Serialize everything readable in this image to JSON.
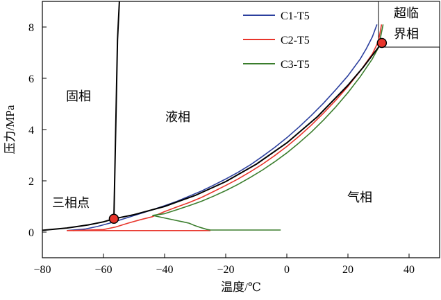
{
  "chart_data": {
    "type": "line",
    "title": "",
    "xlabel": "温度/℃",
    "ylabel": "压力/MPa",
    "xlim": [
      -80,
      50
    ],
    "ylim": [
      -1,
      9
    ],
    "xticks": [
      -80,
      -60,
      -40,
      -20,
      0,
      20,
      40
    ],
    "yticks": [
      0,
      2,
      4,
      6,
      8
    ],
    "grid": false,
    "legend_position": "top-right",
    "colors": {
      "C1-T5": "#2b3f9e",
      "C2-T5": "#e8352b",
      "C3-T5": "#3a7d2c",
      "phase": "#000000",
      "marker": "#e8352b"
    },
    "series": [
      {
        "name": "C1-T5",
        "x": [
          -72,
          -70,
          -66,
          -62,
          -58,
          -56,
          -52,
          -48,
          -44,
          -40,
          -36,
          -32,
          -28,
          -24,
          -20,
          -16,
          -12,
          -8,
          -4,
          0,
          4,
          8,
          12,
          16,
          20,
          24,
          26,
          28,
          29.5
        ],
        "y": [
          0.06,
          0.08,
          0.12,
          0.22,
          0.35,
          0.42,
          0.57,
          0.72,
          0.87,
          1.03,
          1.2,
          1.4,
          1.6,
          1.83,
          2.07,
          2.33,
          2.62,
          2.95,
          3.3,
          3.68,
          4.1,
          4.55,
          5.03,
          5.55,
          6.1,
          6.75,
          7.15,
          7.62,
          8.1
        ]
      },
      {
        "name": "C2-T5",
        "x": [
          -70,
          -60,
          -56,
          -52,
          -48,
          -44,
          -40,
          -36,
          -32,
          -28,
          -24,
          -20,
          -16,
          -12,
          -8,
          -4,
          0,
          4,
          8,
          12,
          16,
          20,
          24,
          28,
          30,
          31
        ],
        "y": [
          0.06,
          0.1,
          0.2,
          0.35,
          0.48,
          0.6,
          0.8,
          0.98,
          1.15,
          1.35,
          1.58,
          1.82,
          2.07,
          2.35,
          2.65,
          2.98,
          3.34,
          3.74,
          4.17,
          4.64,
          5.14,
          5.68,
          6.28,
          6.95,
          7.45,
          8.1
        ]
      },
      {
        "name": "C2-T5 lower",
        "x": [
          -72,
          -60,
          -40,
          -25
        ],
        "y": [
          0.06,
          0.06,
          0.06,
          0.06
        ]
      },
      {
        "name": "C3-T5",
        "x": [
          -44,
          -40,
          -36,
          -32,
          -28,
          -24,
          -20,
          -16,
          -12,
          -8,
          -4,
          0,
          4,
          8,
          12,
          16,
          20,
          24,
          28,
          30,
          31.5
        ],
        "y": [
          0.65,
          0.72,
          0.87,
          1.03,
          1.2,
          1.4,
          1.62,
          1.86,
          2.13,
          2.42,
          2.74,
          3.09,
          3.48,
          3.9,
          4.37,
          4.88,
          5.44,
          6.06,
          6.76,
          7.2,
          8.1
        ]
      },
      {
        "name": "C3-T5 lower",
        "x": [
          -44,
          -40,
          -36,
          -34,
          -32,
          -30,
          -28,
          -26,
          -25,
          -20,
          -10,
          -2
        ],
        "y": [
          0.65,
          0.55,
          0.45,
          0.4,
          0.35,
          0.25,
          0.17,
          0.1,
          0.08,
          0.08,
          0.08,
          0.08
        ]
      },
      {
        "name": "vapor-pressure",
        "x": [
          -80,
          -72,
          -65,
          -60,
          -56.6,
          -50,
          -40,
          -30,
          -20,
          -10,
          0,
          10,
          20,
          25,
          28,
          30,
          31.1
        ],
        "y": [
          0.07,
          0.16,
          0.28,
          0.4,
          0.52,
          0.68,
          1.0,
          1.43,
          1.97,
          2.65,
          3.48,
          4.5,
          5.73,
          6.43,
          6.9,
          7.21,
          7.38
        ]
      },
      {
        "name": "melting",
        "x": [
          -56.6,
          -56.0,
          -55.4,
          -54.8
        ],
        "y": [
          0.52,
          4.0,
          7.5,
          9.0
        ]
      }
    ],
    "points": [
      {
        "name": "三相点",
        "x": -56.6,
        "y": 0.52
      },
      {
        "name": "超临界",
        "x": 31.1,
        "y": 7.38
      }
    ],
    "annotations": {
      "solid": "固相",
      "liquid": "液相",
      "gas": "气相",
      "triple": "三相点",
      "supercritical_line1": "超临",
      "supercritical_line2": "界相"
    }
  }
}
